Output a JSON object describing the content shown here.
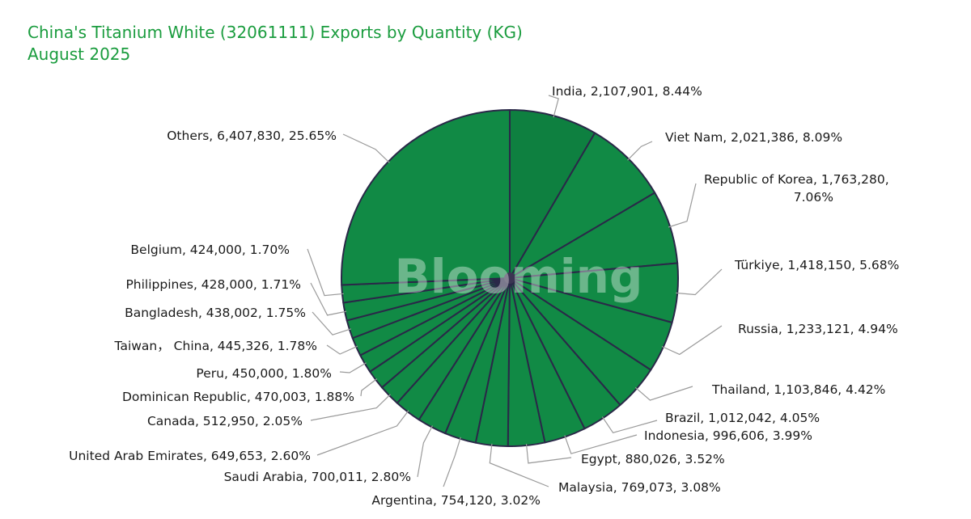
{
  "chart_data": {
    "type": "pie",
    "title": "China's Titanium White (32061111) Exports by Quantity (KG)",
    "subtitle": "August 2025",
    "watermark": "Blooming",
    "colors": {
      "slice": "#118a45",
      "slice_dark": "#0e8040",
      "stroke": "#2a2848",
      "title": "#1a9c3e"
    },
    "slices": [
      {
        "label": "India",
        "value": 2107901,
        "percent": "8.44%",
        "text": "India, 2,107,901, 8.44%"
      },
      {
        "label": "Viet Nam",
        "value": 2021386,
        "percent": "8.09%",
        "text": "Viet Nam, 2,021,386, 8.09%"
      },
      {
        "label": "Republic of Korea",
        "value": 1763280,
        "percent": "7.06%",
        "text": "Republic of Korea, 1,763,280,",
        "text2": "7.06%"
      },
      {
        "label": "Türkiye",
        "value": 1418150,
        "percent": "5.68%",
        "text": "Türkiye, 1,418,150, 5.68%"
      },
      {
        "label": "Russia",
        "value": 1233121,
        "percent": "4.94%",
        "text": "Russia, 1,233,121, 4.94%"
      },
      {
        "label": "Thailand",
        "value": 1103846,
        "percent": "4.42%",
        "text": "Thailand, 1,103,846, 4.42%"
      },
      {
        "label": "Brazil",
        "value": 1012042,
        "percent": "4.05%",
        "text": "Brazil, 1,012,042, 4.05%"
      },
      {
        "label": "Indonesia",
        "value": 996606,
        "percent": "3.99%",
        "text": "Indonesia, 996,606, 3.99%"
      },
      {
        "label": "Egypt",
        "value": 880026,
        "percent": "3.52%",
        "text": "Egypt, 880,026, 3.52%"
      },
      {
        "label": "Malaysia",
        "value": 769073,
        "percent": "3.08%",
        "text": "Malaysia, 769,073, 3.08%"
      },
      {
        "label": "Argentina",
        "value": 754120,
        "percent": "3.02%",
        "text": "Argentina, 754,120, 3.02%"
      },
      {
        "label": "Saudi Arabia",
        "value": 700011,
        "percent": "2.80%",
        "text": "Saudi Arabia, 700,011, 2.80%"
      },
      {
        "label": "United Arab Emirates",
        "value": 649653,
        "percent": "2.60%",
        "text": "United Arab Emirates, 649,653, 2.60%"
      },
      {
        "label": "Canada",
        "value": 512950,
        "percent": "2.05%",
        "text": "Canada, 512,950, 2.05%"
      },
      {
        "label": "Dominican Republic",
        "value": 470003,
        "percent": "1.88%",
        "text": "Dominican Republic, 470,003, 1.88%"
      },
      {
        "label": "Peru",
        "value": 450000,
        "percent": "1.80%",
        "text": "Peru, 450,000, 1.80%"
      },
      {
        "label": "Taiwan， China",
        "value": 445326,
        "percent": "1.78%",
        "text": "Taiwan， China, 445,326, 1.78%"
      },
      {
        "label": "Bangladesh",
        "value": 438002,
        "percent": "1.75%",
        "text": "Bangladesh, 438,002, 1.75%"
      },
      {
        "label": "Philippines",
        "value": 428000,
        "percent": "1.71%",
        "text": "Philippines, 428,000, 1.71%"
      },
      {
        "label": "Belgium",
        "value": 424000,
        "percent": "1.70%",
        "text": "Belgium, 424,000, 1.70%"
      },
      {
        "label": "Others",
        "value": 6407830,
        "percent": "25.65%",
        "text": "Others, 6,407,830, 25.65%"
      }
    ]
  }
}
